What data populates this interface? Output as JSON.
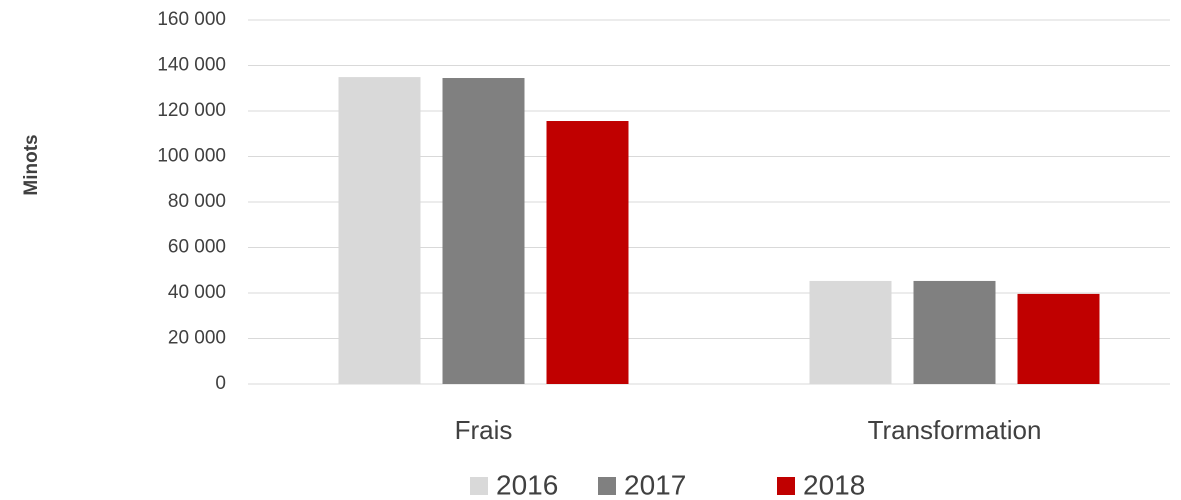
{
  "chart_data": {
    "type": "bar",
    "y_label": "Minots",
    "categories": [
      "Frais",
      "Transformation"
    ],
    "series": [
      {
        "name": "2016",
        "color": "#d9d9d9",
        "values": [
          134900,
          45300
        ]
      },
      {
        "name": "2017",
        "color": "#808080",
        "values": [
          134500,
          45300
        ]
      },
      {
        "name": "2018",
        "color": "#c00000",
        "values": [
          115600,
          39600
        ]
      }
    ],
    "ylim": [
      0,
      160000
    ],
    "yticks": [
      0,
      {
        "value": 20000,
        "label": "20 000"
      },
      {
        "value": 40000,
        "label": "40 000"
      },
      {
        "value": 60000,
        "label": "60 000"
      },
      {
        "value": 80000,
        "label": "80 000"
      },
      {
        "value": 100000,
        "label": "100 000"
      },
      {
        "value": 120000,
        "label": "120 000"
      },
      {
        "value": 140000,
        "label": "140 000"
      },
      {
        "value": 160000,
        "label": "160 000"
      }
    ],
    "grid": true,
    "legend": "bottom"
  }
}
